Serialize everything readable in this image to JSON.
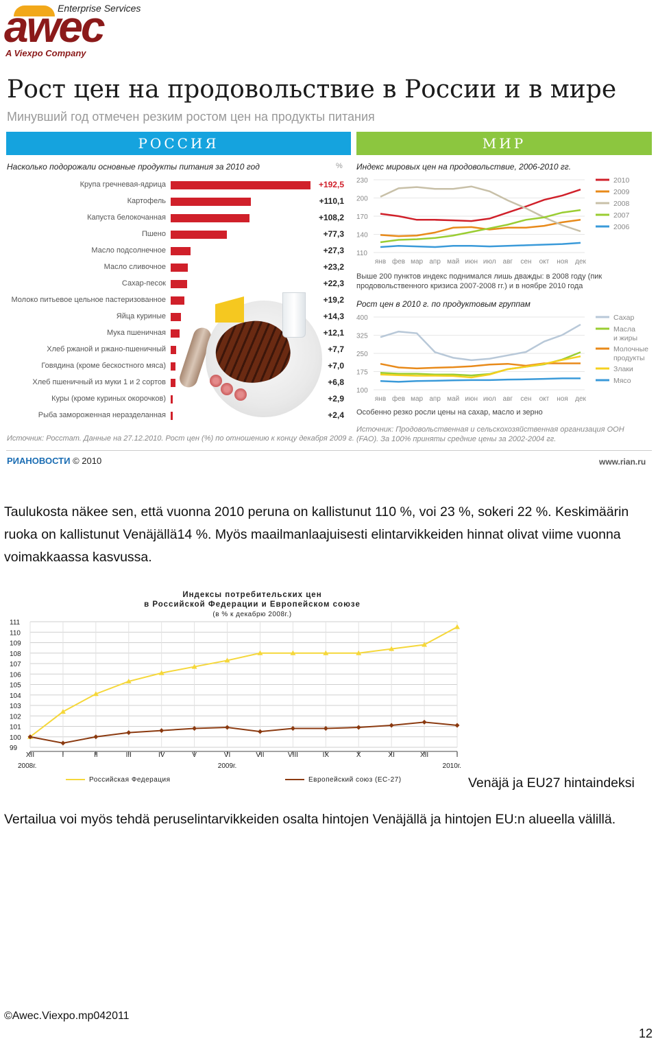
{
  "logo": {
    "line1": "Enterprise Services",
    "brand": "awec",
    "line2": "A Viexpo Company",
    "colors": {
      "brand": "#8b1a1a",
      "swoosh": "#f2a81a"
    }
  },
  "infographic": {
    "title": "Рост цен на продовольствие в России и в мире",
    "subtitle": "Минувший год отмечен резким ростом цен на продукты питания",
    "band_russia": "РОССИЯ",
    "band_world": "МИР",
    "colors": {
      "russia": "#15a3de",
      "world": "#8cc63f",
      "bar": "#d0202a"
    },
    "russia": {
      "heading": "Насколько подорожали основные продукты питания за 2010 год",
      "unit": "%",
      "items": [
        {
          "name": "Крупа гречневая-ядрица",
          "label": "+192,5",
          "value": 192.5
        },
        {
          "name": "Картофель",
          "label": "+110,1",
          "value": 110.1
        },
        {
          "name": "Капуста белокочанная",
          "label": "+108,2",
          "value": 108.2
        },
        {
          "name": "Пшено",
          "label": "+77,3",
          "value": 77.3
        },
        {
          "name": "Масло подсолнечное",
          "label": "+27,3",
          "value": 27.3
        },
        {
          "name": "Масло сливочное",
          "label": "+23,2",
          "value": 23.2
        },
        {
          "name": "Сахар-песок",
          "label": "+22,3",
          "value": 22.3
        },
        {
          "name": "Молоко питьевое цельное пастеризованное",
          "label": "+19,2",
          "value": 19.2
        },
        {
          "name": "Яйца куриные",
          "label": "+14,3",
          "value": 14.3
        },
        {
          "name": "Мука пшеничная",
          "label": "+12,1",
          "value": 12.1
        },
        {
          "name": "Хлеб ржаной и ржано-пшеничный",
          "label": "+7,7",
          "value": 7.7
        },
        {
          "name": "Говядина (кроме бескостного мяса)",
          "label": "+7,0",
          "value": 7.0
        },
        {
          "name": "Хлеб пшеничный из муки 1 и 2 сортов",
          "label": "+6,8",
          "value": 6.8
        },
        {
          "name": "Куры (кроме куриных окорочков)",
          "label": "+2,9",
          "value": 2.9
        },
        {
          "name": "Рыба замороженная неразделанная",
          "label": "+2,4",
          "value": 2.4
        }
      ],
      "source": "Источник: Росстат. Данные на 27.12.2010. Рост цен (%) по отношению к концу декабря 2009 г."
    },
    "world": {
      "index_title": "Индекс мировых цен на продовольствие, 2006-2010 гг.",
      "months": [
        "янв",
        "фев",
        "мар",
        "апр",
        "май",
        "июн",
        "июл",
        "авг",
        "сен",
        "окт",
        "ноя",
        "дек"
      ],
      "index_ticks": [
        "230",
        "200",
        "170",
        "140",
        "110"
      ],
      "index_note": "Выше 200 пунктов индекс поднимался лишь дважды: в 2008 году (пик продовольственного кризиса 2007-2008 гг.) и в ноябре 2010 года",
      "groups_title": "Рост цен в 2010 г. по продуктовым группам",
      "groups_ticks": [
        "400",
        "325",
        "250",
        "175",
        "100"
      ],
      "groups_note": "Особенно резко росли цены на сахар, масло и зерно",
      "source": "Источник: Продовольственная и сельскохозяйственная организация ООН (FAO). За 100% приняты средние цены за 2002-2004 гг."
    },
    "ria_logo": "РИАНОВОСТИ",
    "ria_year": "© 2010",
    "url": "www.rian.ru"
  },
  "chart_data": [
    {
      "type": "line",
      "title": "Индекс мировых цен на продовольствие, 2006-2010 гг.",
      "x": [
        "янв",
        "фев",
        "мар",
        "апр",
        "май",
        "июн",
        "июл",
        "авг",
        "сен",
        "окт",
        "ноя",
        "дек"
      ],
      "ylim": [
        110,
        230
      ],
      "series": [
        {
          "name": "2010",
          "color": "#d0202a",
          "values": [
            174,
            170,
            164,
            164,
            163,
            162,
            166,
            176,
            186,
            197,
            204,
            214
          ]
        },
        {
          "name": "2009",
          "color": "#e88a1a",
          "values": [
            139,
            137,
            138,
            143,
            151,
            152,
            148,
            151,
            151,
            154,
            160,
            164
          ]
        },
        {
          "name": "2008",
          "color": "#c8c0a8",
          "values": [
            202,
            216,
            218,
            215,
            215,
            219,
            211,
            196,
            183,
            168,
            155,
            145
          ]
        },
        {
          "name": "2007",
          "color": "#9acd32",
          "values": [
            127,
            131,
            132,
            134,
            138,
            144,
            150,
            156,
            164,
            168,
            176,
            180
          ]
        },
        {
          "name": "2006",
          "color": "#3a9ad9",
          "values": [
            119,
            121,
            120,
            119,
            121,
            121,
            120,
            121,
            122,
            123,
            124,
            126
          ]
        }
      ]
    },
    {
      "type": "line",
      "title": "Рост цен в 2010 г. по продуктовым группам",
      "x": [
        "янв",
        "фев",
        "мар",
        "апр",
        "май",
        "июн",
        "июл",
        "авг",
        "сен",
        "окт",
        "ноя",
        "дек"
      ],
      "ylim": [
        100,
        400
      ],
      "series": [
        {
          "name": "Сахар",
          "color": "#b8c8d8",
          "values": [
            317,
            340,
            333,
            255,
            232,
            222,
            228,
            242,
            256,
            299,
            326,
            369
          ]
        },
        {
          "name": "Масла и жиры",
          "color": "#9acd32",
          "values": [
            170,
            166,
            166,
            163,
            163,
            159,
            165,
            185,
            195,
            205,
            225,
            255
          ]
        },
        {
          "name": "Молочные продукты",
          "color": "#e88a1a",
          "values": [
            207,
            192,
            188,
            191,
            193,
            197,
            204,
            207,
            199,
            209,
            209,
            209
          ]
        },
        {
          "name": "Злаки",
          "color": "#f5d020",
          "values": [
            163,
            160,
            158,
            158,
            157,
            151,
            163,
            185,
            195,
            207,
            223,
            238
          ]
        },
        {
          "name": "Мясо",
          "color": "#3a9ad9",
          "values": [
            136,
            133,
            136,
            137,
            139,
            140,
            140,
            142,
            143,
            145,
            147,
            147
          ]
        }
      ]
    },
    {
      "type": "line",
      "title": "Индексы потребительских цен в Российской Федерации и Европейском союзе",
      "subtitle": "(в % к декабрю 2008г.)",
      "x": [
        "XII",
        "I",
        "II",
        "III",
        "IV",
        "V",
        "VI",
        "VII",
        "VIII",
        "IX",
        "X",
        "XI",
        "XII",
        "I"
      ],
      "year_labels": [
        "2008г.",
        "2009г.",
        "2010г."
      ],
      "ylim": [
        99,
        111
      ],
      "y_ticks": [
        "111",
        "110",
        "109",
        "108",
        "107",
        "106",
        "105",
        "104",
        "103",
        "102",
        "101",
        "100",
        "99"
      ],
      "series": [
        {
          "name": "Российская Федерация",
          "color": "#f5d73a",
          "values": [
            100.0,
            102.4,
            104.1,
            105.3,
            106.1,
            106.7,
            107.3,
            108.0,
            108.0,
            108.0,
            108.0,
            108.4,
            108.8,
            110.5
          ]
        },
        {
          "name": "Европейский союз (ЕС-27)",
          "color": "#8b3a10",
          "values": [
            100.0,
            99.4,
            100.0,
            100.4,
            100.6,
            100.8,
            100.9,
            100.5,
            100.8,
            100.8,
            100.9,
            101.1,
            101.4,
            101.1
          ]
        }
      ]
    }
  ],
  "text": {
    "para1": "Taulukosta näkee sen, että vuonna 2010 peruna on kallistunut 110 %, voi 23 %, sokeri 22 %. Keskimäärin ruoka on kallistunut Venäjällä14 %. Myös maailmanlaajuisesti elintarvikkeiden hinnat olivat viime vuonna voimakkaassa kasvussa.",
    "chart_caption": "Venäjä ja EU27 hintaindeksi",
    "para2": "Vertailua voi myös tehdä peruselintarvikkeiden osalta hintojen Venäjällä ja hintojen EU:n alueella välillä."
  },
  "footer": {
    "copyright": "©Awec.Viexpo.mp042011",
    "page": "12"
  }
}
